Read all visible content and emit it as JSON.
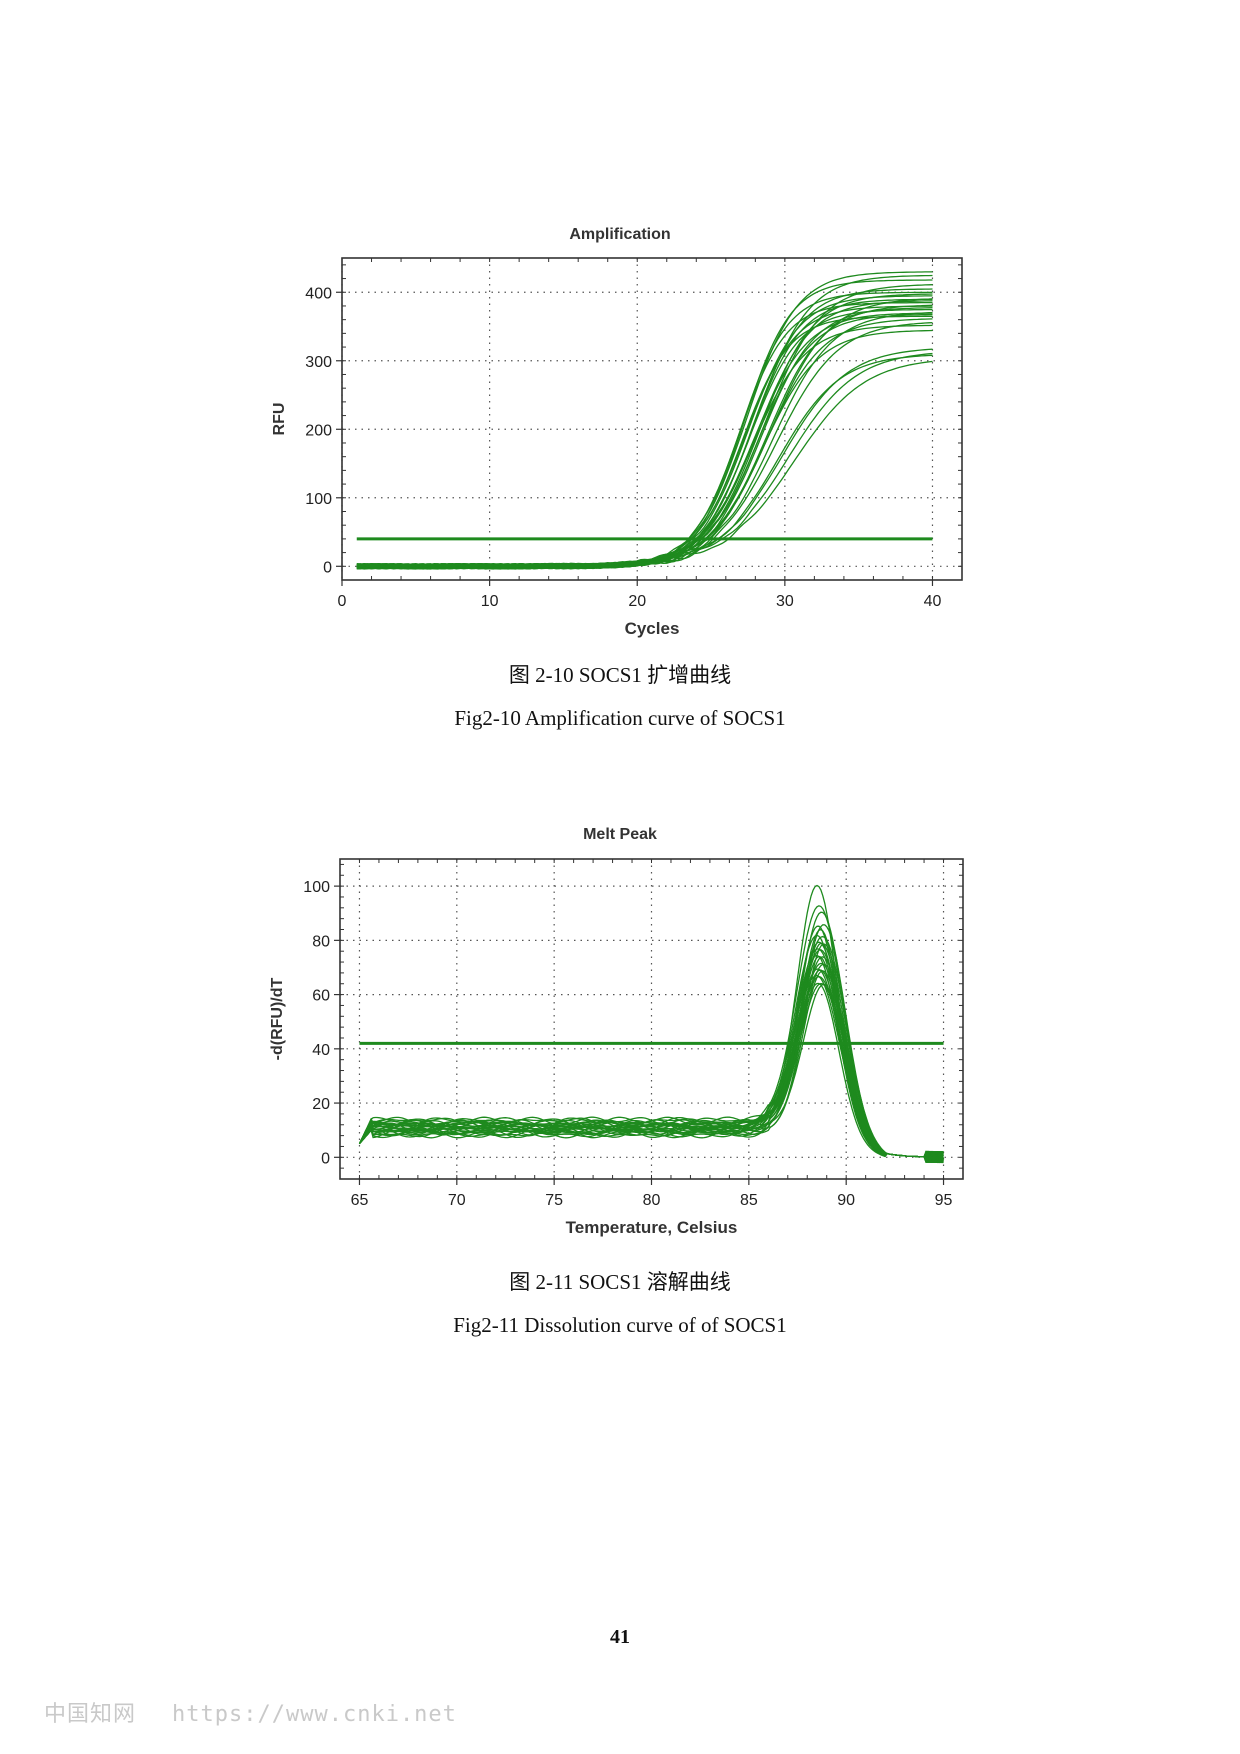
{
  "chart_data": [
    {
      "type": "line",
      "title": "Amplification",
      "xlabel": "Cycles",
      "ylabel": "RFU",
      "xlim": [
        0,
        42
      ],
      "ylim": [
        -20,
        450
      ],
      "xticks": [
        0,
        10,
        20,
        30,
        40
      ],
      "yticks": [
        0,
        100,
        200,
        300,
        400
      ],
      "grid": true,
      "legend": "none",
      "threshold": 40,
      "line_color": "#1e8a1e",
      "sigmoid_curves": {
        "x_range": [
          1,
          40
        ],
        "plateaus": [
          430,
          425,
          418,
          412,
          405,
          400,
          398,
          395,
          392,
          390,
          388,
          385,
          382,
          380,
          378,
          375,
          372,
          370,
          368,
          365,
          362,
          358,
          352,
          345,
          320,
          315,
          310,
          305
        ],
        "midpoints": [
          27.4,
          28.0,
          27.2,
          28.6,
          27.8,
          27.0,
          28.3,
          27.5,
          29.0,
          27.7,
          28.1,
          26.9,
          28.8,
          27.3,
          28.4,
          27.6,
          29.2,
          27.9,
          28.2,
          27.1,
          28.7,
          29.4,
          27.8,
          28.5,
          29.8,
          30.2,
          29.5,
          30.6
        ],
        "slopes": [
          1.7,
          1.8,
          1.6,
          1.9,
          1.7,
          1.6,
          1.8,
          1.7,
          2.0,
          1.7,
          1.8,
          1.6,
          1.9,
          1.7,
          1.8,
          1.7,
          2.0,
          1.8,
          1.8,
          1.6,
          1.9,
          2.1,
          1.8,
          1.9,
          2.2,
          2.3,
          2.1,
          2.4
        ]
      }
    },
    {
      "type": "line",
      "title": "Melt Peak",
      "xlabel": "Temperature, Celsius",
      "ylabel": "-d(RFU)/dT",
      "xlim": [
        64,
        96
      ],
      "ylim": [
        -8,
        110
      ],
      "xticks": [
        65,
        70,
        75,
        80,
        85,
        90,
        95
      ],
      "yticks": [
        0,
        20,
        40,
        60,
        80,
        100
      ],
      "grid": true,
      "legend": "none",
      "threshold": 42,
      "line_color": "#1e8a1e",
      "peak_curves": {
        "x_range": [
          65,
          95
        ],
        "peak_temperature": 88.7,
        "baseline": 11,
        "peak_heights": [
          104,
          98,
          95,
          92,
          90,
          88,
          87,
          86,
          85,
          84,
          83,
          82,
          81,
          80,
          79,
          78,
          77,
          76,
          75,
          74,
          73,
          72,
          71,
          70,
          69,
          68
        ]
      }
    }
  ],
  "captions": {
    "fig1_cn": "图 2-10 SOCS1 扩增曲线",
    "fig1_en": "Fig2-10 Amplification curve of SOCS1",
    "fig2_cn": "图 2-11 SOCS1 溶解曲线",
    "fig2_en": "Fig2-11 Dissolution curve of of SOCS1"
  },
  "page_number": "41",
  "watermark": {
    "site_name": "中国知网",
    "url": "https://www.cnki.net"
  }
}
